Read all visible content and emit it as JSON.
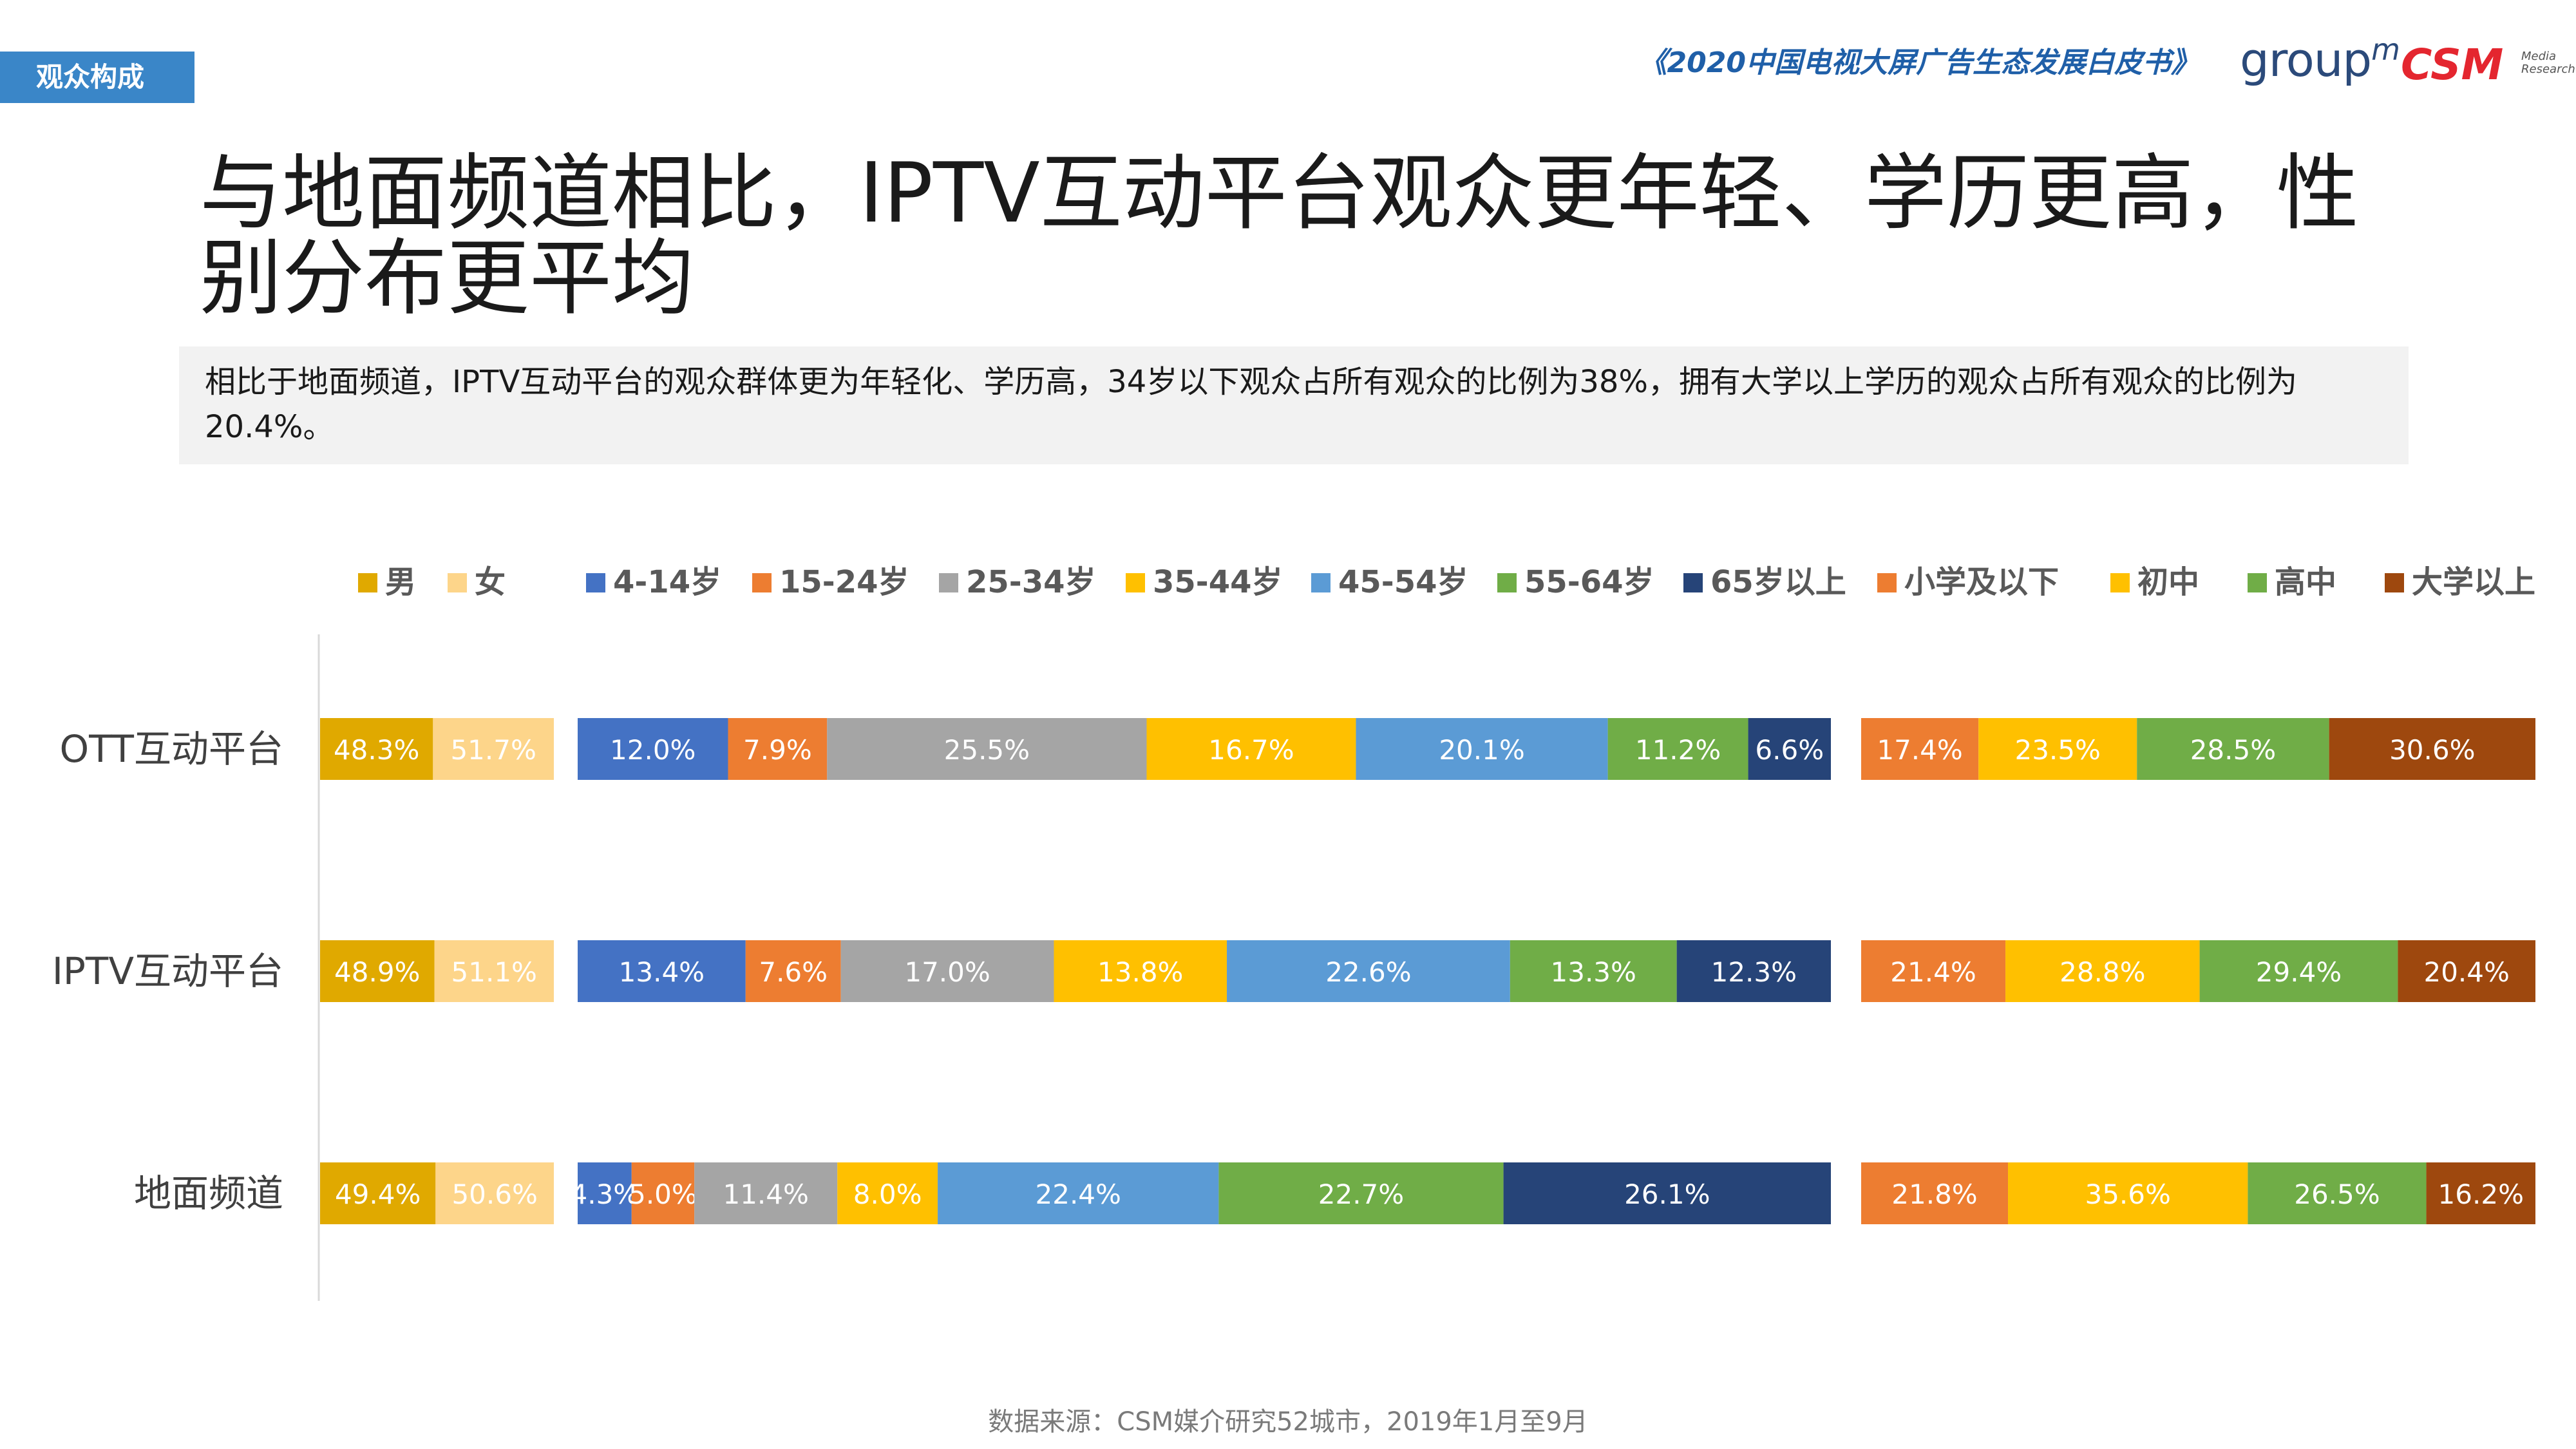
{
  "header": {
    "section_tag": "观众构成",
    "report_title": "《2020中国电视大屏广告生态发展白皮书》",
    "logo_groupm": "group",
    "logo_groupm_suffix": "m",
    "logo_csm": "CSM",
    "logo_csm_sub": [
      "Media",
      "Research"
    ]
  },
  "headline": "与地面频道相比，IPTV互动平台观众更年轻、学历更高，性别分布更平均",
  "summary": "相比于地面频道，IPTV互动平台的观众群体更为年轻化、学历高，34岁以下观众占所有观众的比例为38%，拥有大学以上学历的观众占所有观众的比例为20.4%。",
  "source": "数据来源：CSM媒介研究52城市，2019年1月至9月",
  "chart_data": {
    "type": "bar",
    "orientation": "horizontal",
    "stacked": "100%",
    "categories": [
      "OTT互动平台",
      "IPTV互动平台",
      "地面频道"
    ],
    "groups": [
      {
        "name": "gender",
        "series": [
          {
            "name": "男",
            "color": "#e0a900",
            "label_color": "#ffffff",
            "values": [
              48.3,
              48.9,
              49.4
            ]
          },
          {
            "name": "女",
            "color": "#fdd58a",
            "label_color": "#ffffff",
            "values": [
              51.7,
              51.1,
              50.6
            ]
          }
        ]
      },
      {
        "name": "age",
        "series": [
          {
            "name": "4-14岁",
            "color": "#4472c4",
            "label_color": "#ffffff",
            "values": [
              12.0,
              13.4,
              4.3
            ]
          },
          {
            "name": "15-24岁",
            "color": "#ed7d31",
            "label_color": "#ffffff",
            "values": [
              7.9,
              7.6,
              5.0
            ]
          },
          {
            "name": "25-34岁",
            "color": "#a5a5a5",
            "label_color": "#ffffff",
            "values": [
              25.5,
              17.0,
              11.4
            ]
          },
          {
            "name": "35-44岁",
            "color": "#ffc000",
            "label_color": "#ffffff",
            "values": [
              16.7,
              13.8,
              8.0
            ]
          },
          {
            "name": "45-54岁",
            "color": "#5b9bd5",
            "label_color": "#ffffff",
            "values": [
              20.1,
              22.6,
              22.4
            ]
          },
          {
            "name": "55-64岁",
            "color": "#70ad47",
            "label_color": "#ffffff",
            "values": [
              11.2,
              13.3,
              22.7
            ]
          },
          {
            "name": "65岁以上",
            "color": "#264478",
            "label_color": "#ffffff",
            "values": [
              6.6,
              12.3,
              26.1
            ]
          }
        ]
      },
      {
        "name": "education",
        "series": [
          {
            "name": "小学及以下",
            "color": "#ed7d31",
            "label_color": "#ffffff",
            "values": [
              17.4,
              21.4,
              21.8
            ]
          },
          {
            "name": "初中",
            "color": "#ffc000",
            "label_color": "#ffffff",
            "values": [
              23.5,
              28.8,
              35.6
            ]
          },
          {
            "name": "高中",
            "color": "#70ad47",
            "label_color": "#ffffff",
            "values": [
              28.5,
              29.4,
              26.5
            ]
          },
          {
            "name": "大学以上",
            "color": "#9e480e",
            "label_color": "#ffffff",
            "values": [
              30.6,
              20.4,
              16.2
            ]
          }
        ]
      }
    ],
    "legend_position": "top",
    "grid": false,
    "value_format": "percent-1dp"
  }
}
